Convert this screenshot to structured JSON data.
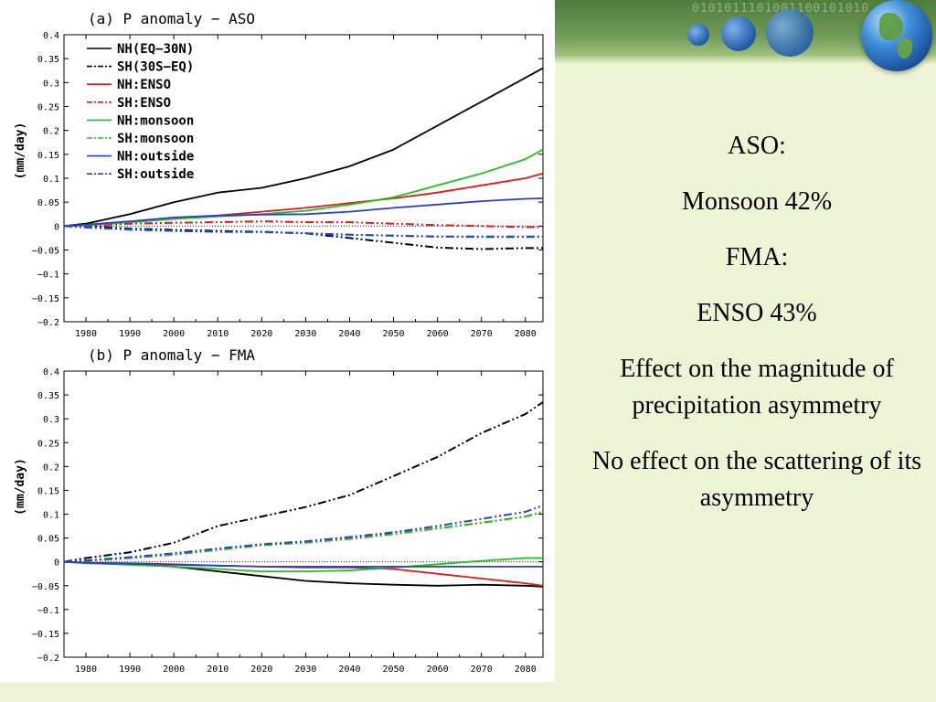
{
  "slide": {
    "lines": [
      "ASO:",
      "Monsoon 42%",
      "FMA:",
      "ENSO 43%",
      "Effect on the magnitude of precipitation asymmetry",
      "No effect on the scattering of its asymmetry"
    ],
    "header_binary": "0101011101001100101010",
    "colors": {
      "background": "#eef5d6",
      "header": "#6f9a55"
    }
  },
  "chart_data": [
    {
      "type": "line",
      "title": "(a) P anomaly − ASO",
      "ylabel": "(mm/day)",
      "xlabel": "",
      "xlim": [
        1975,
        2084
      ],
      "ylim": [
        -0.2,
        0.4
      ],
      "xticks": [
        1980,
        1990,
        2000,
        2010,
        2020,
        2030,
        2040,
        2050,
        2060,
        2070,
        2080
      ],
      "yticks": [
        -0.2,
        -0.15,
        -0.1,
        -0.05,
        0,
        0.05,
        0.1,
        0.15,
        0.2,
        0.25,
        0.3,
        0.35,
        0.4
      ],
      "legend_position": "top-left",
      "series": [
        {
          "name": "NH(EQ−30N)",
          "color": "#000000",
          "dash": "solid",
          "x": [
            1975,
            1980,
            1990,
            2000,
            2010,
            2020,
            2030,
            2040,
            2050,
            2060,
            2070,
            2080,
            2084
          ],
          "y": [
            0,
            0.005,
            0.025,
            0.05,
            0.07,
            0.08,
            0.1,
            0.125,
            0.16,
            0.21,
            0.26,
            0.31,
            0.33
          ]
        },
        {
          "name": "SH(30S−EQ)",
          "color": "#000000",
          "dash": "dashdot",
          "x": [
            1975,
            1980,
            1990,
            2000,
            2010,
            2020,
            2030,
            2040,
            2050,
            2060,
            2070,
            2080,
            2084
          ],
          "y": [
            0,
            0,
            -0.005,
            -0.008,
            -0.01,
            -0.012,
            -0.015,
            -0.025,
            -0.035,
            -0.045,
            -0.048,
            -0.046,
            -0.046
          ]
        },
        {
          "name": "NH:ENSO",
          "color": "#e01818",
          "dash": "solid",
          "x": [
            1975,
            1980,
            1990,
            2000,
            2010,
            2020,
            2030,
            2040,
            2050,
            2060,
            2070,
            2080,
            2084
          ],
          "y": [
            0,
            0.002,
            0.008,
            0.015,
            0.022,
            0.03,
            0.038,
            0.048,
            0.058,
            0.07,
            0.085,
            0.1,
            0.11
          ]
        },
        {
          "name": "SH:ENSO",
          "color": "#e01818",
          "dash": "dashdot",
          "x": [
            1975,
            1980,
            1990,
            2000,
            2010,
            2020,
            2030,
            2040,
            2050,
            2060,
            2070,
            2080,
            2084
          ],
          "y": [
            0,
            0,
            0.005,
            0.007,
            0.008,
            0.01,
            0.008,
            0.008,
            0.005,
            0.002,
            0,
            -0.002,
            -0.002
          ]
        },
        {
          "name": "NH:monsoon",
          "color": "#22c01e",
          "dash": "solid",
          "x": [
            1975,
            1980,
            1990,
            2000,
            2010,
            2020,
            2030,
            2040,
            2050,
            2060,
            2070,
            2080,
            2084
          ],
          "y": [
            0,
            0.002,
            0.008,
            0.015,
            0.02,
            0.025,
            0.032,
            0.045,
            0.06,
            0.085,
            0.11,
            0.14,
            0.16
          ]
        },
        {
          "name": "SH:monsoon",
          "color": "#22c01e",
          "dash": "dashdot",
          "x": [
            1975,
            1980,
            1990,
            2000,
            2010,
            2020,
            2030,
            2040,
            2050,
            2060,
            2070,
            2080,
            2084
          ],
          "y": [
            0,
            -0.003,
            -0.008,
            -0.01,
            -0.012,
            -0.013,
            -0.015,
            -0.018,
            -0.02,
            -0.022,
            -0.023,
            -0.023,
            -0.023
          ]
        },
        {
          "name": "NH:outside",
          "color": "#2a3fd0",
          "dash": "solid",
          "x": [
            1975,
            1980,
            1990,
            2000,
            2010,
            2020,
            2030,
            2040,
            2050,
            2060,
            2070,
            2080,
            2084
          ],
          "y": [
            0,
            0.003,
            0.01,
            0.018,
            0.022,
            0.024,
            0.025,
            0.03,
            0.038,
            0.045,
            0.052,
            0.057,
            0.058
          ]
        },
        {
          "name": "SH:outside",
          "color": "#2a3fd0",
          "dash": "dashdot",
          "x": [
            1975,
            1980,
            1990,
            2000,
            2010,
            2020,
            2030,
            2040,
            2050,
            2060,
            2070,
            2080,
            2084
          ],
          "y": [
            0,
            -0.003,
            -0.006,
            -0.01,
            -0.012,
            -0.012,
            -0.015,
            -0.018,
            -0.02,
            -0.022,
            -0.022,
            -0.022,
            -0.022
          ]
        }
      ]
    },
    {
      "type": "line",
      "title": "(b) P anomaly − FMA",
      "ylabel": "(mm/day)",
      "xlabel": "",
      "xlim": [
        1975,
        2084
      ],
      "ylim": [
        -0.2,
        0.4
      ],
      "xticks": [
        1980,
        1990,
        2000,
        2010,
        2020,
        2030,
        2040,
        2050,
        2060,
        2070,
        2080
      ],
      "yticks": [
        -0.2,
        -0.15,
        -0.1,
        -0.05,
        0,
        0.05,
        0.1,
        0.15,
        0.2,
        0.25,
        0.3,
        0.35,
        0.4
      ],
      "series": [
        {
          "name": "NH(EQ−30N)",
          "color": "#000000",
          "dash": "solid",
          "x": [
            1975,
            1980,
            1990,
            2000,
            2010,
            2020,
            2030,
            2040,
            2050,
            2060,
            2070,
            2080,
            2084
          ],
          "y": [
            0,
            -0.002,
            -0.005,
            -0.01,
            -0.02,
            -0.03,
            -0.04,
            -0.045,
            -0.048,
            -0.05,
            -0.048,
            -0.05,
            -0.052
          ]
        },
        {
          "name": "SH(30S−EQ)",
          "color": "#000000",
          "dash": "dashdot",
          "x": [
            1975,
            1980,
            1990,
            2000,
            2010,
            2020,
            2030,
            2040,
            2050,
            2060,
            2070,
            2080,
            2084
          ],
          "y": [
            0,
            0.008,
            0.02,
            0.04,
            0.075,
            0.095,
            0.115,
            0.14,
            0.18,
            0.22,
            0.27,
            0.31,
            0.335
          ]
        },
        {
          "name": "NH:ENSO",
          "color": "#e01818",
          "dash": "solid",
          "x": [
            1975,
            1980,
            1990,
            2000,
            2010,
            2020,
            2030,
            2040,
            2050,
            2060,
            2070,
            2080,
            2084
          ],
          "y": [
            0,
            -0.002,
            -0.003,
            -0.005,
            -0.008,
            -0.01,
            -0.012,
            -0.012,
            -0.015,
            -0.025,
            -0.035,
            -0.045,
            -0.05
          ]
        },
        {
          "name": "SH:ENSO",
          "color": "#e01818",
          "dash": "dashdot",
          "x": [
            1975,
            1980,
            1990,
            2000,
            2010,
            2020,
            2030,
            2040,
            2050,
            2060,
            2070,
            2080,
            2084
          ],
          "y": [
            0,
            0.002,
            0.008,
            0.015,
            0.025,
            0.035,
            0.042,
            0.05,
            0.06,
            0.07,
            0.082,
            0.095,
            0.105
          ]
        },
        {
          "name": "NH:monsoon",
          "color": "#22c01e",
          "dash": "solid",
          "x": [
            1975,
            1980,
            1990,
            2000,
            2010,
            2020,
            2030,
            2040,
            2050,
            2060,
            2070,
            2080,
            2084
          ],
          "y": [
            0,
            -0.003,
            -0.006,
            -0.01,
            -0.015,
            -0.02,
            -0.02,
            -0.018,
            -0.012,
            -0.005,
            0.002,
            0.008,
            0.008
          ]
        },
        {
          "name": "SH:monsoon",
          "color": "#22c01e",
          "dash": "dashdot",
          "x": [
            1975,
            1980,
            1990,
            2000,
            2010,
            2020,
            2030,
            2040,
            2050,
            2060,
            2070,
            2080,
            2084
          ],
          "y": [
            0,
            0.002,
            0.008,
            0.015,
            0.025,
            0.035,
            0.04,
            0.048,
            0.058,
            0.07,
            0.082,
            0.095,
            0.105
          ]
        },
        {
          "name": "NH:outside",
          "color": "#2a3fd0",
          "dash": "solid",
          "x": [
            1975,
            1980,
            1990,
            2000,
            2010,
            2020,
            2030,
            2040,
            2050,
            2060,
            2070,
            2080,
            2084
          ],
          "y": [
            0,
            -0.002,
            -0.004,
            -0.006,
            -0.008,
            -0.01,
            -0.01,
            -0.01,
            -0.01,
            -0.01,
            -0.01,
            -0.01,
            -0.01
          ]
        },
        {
          "name": "SH:outside",
          "color": "#2a3fd0",
          "dash": "dashdot",
          "x": [
            1975,
            1980,
            1990,
            2000,
            2010,
            2020,
            2030,
            2040,
            2050,
            2060,
            2070,
            2080,
            2084
          ],
          "y": [
            0,
            0.003,
            0.01,
            0.018,
            0.028,
            0.037,
            0.043,
            0.052,
            0.062,
            0.075,
            0.09,
            0.105,
            0.118
          ]
        }
      ]
    }
  ]
}
